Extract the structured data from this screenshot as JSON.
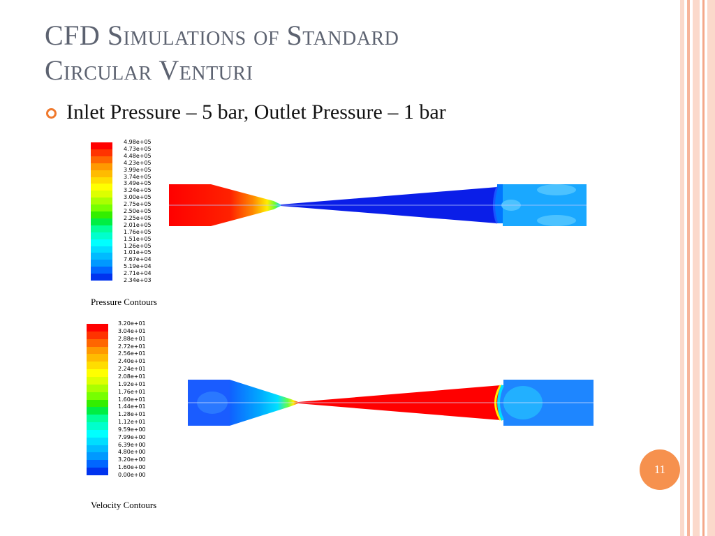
{
  "slide": {
    "title_line1": "CFD Simulations of Standard",
    "title_line2": "Circular Venturi",
    "bullet": "Inlet Pressure – 5 bar, Outlet Pressure – 1 bar",
    "page_number": "11"
  },
  "pressure_plot": {
    "caption": "Pressure Contours",
    "legend_labels": [
      "4.98e+05",
      "4.73e+05",
      "4.48e+05",
      "4.23e+05",
      "3.99e+05",
      "3.74e+05",
      "3.49e+05",
      "3.24e+05",
      "3.00e+05",
      "2.75e+05",
      "2.50e+05",
      "2.25e+05",
      "2.01e+05",
      "1.76e+05",
      "1.51e+05",
      "1.26e+05",
      "1.01e+05",
      "7.67e+04",
      "5.19e+04",
      "2.71e+04",
      "2.34e+03"
    ]
  },
  "velocity_plot": {
    "caption": "Velocity Contours",
    "legend_labels": [
      "3.20e+01",
      "3.04e+01",
      "2.88e+01",
      "2.72e+01",
      "2.56e+01",
      "2.40e+01",
      "2.24e+01",
      "2.08e+01",
      "1.92e+01",
      "1.76e+01",
      "1.60e+01",
      "1.44e+01",
      "1.28e+01",
      "1.12e+01",
      "9.59e+00",
      "7.99e+00",
      "6.39e+00",
      "4.80e+00",
      "3.20e+00",
      "1.60e+00",
      "0.00e+00"
    ]
  },
  "colors": {
    "accent": "#f07a2e",
    "title": "#5c6270",
    "colormap": [
      "#ff0000",
      "#ff3300",
      "#ff6600",
      "#ff9900",
      "#ffbb00",
      "#ffdd00",
      "#ffff00",
      "#ddff00",
      "#aaff00",
      "#77ff00",
      "#33ee00",
      "#00ee44",
      "#00ff99",
      "#00ffcc",
      "#00ffff",
      "#00ddff",
      "#00bbff",
      "#0099ff",
      "#0066ff",
      "#0033ee",
      "#0000dd"
    ]
  }
}
